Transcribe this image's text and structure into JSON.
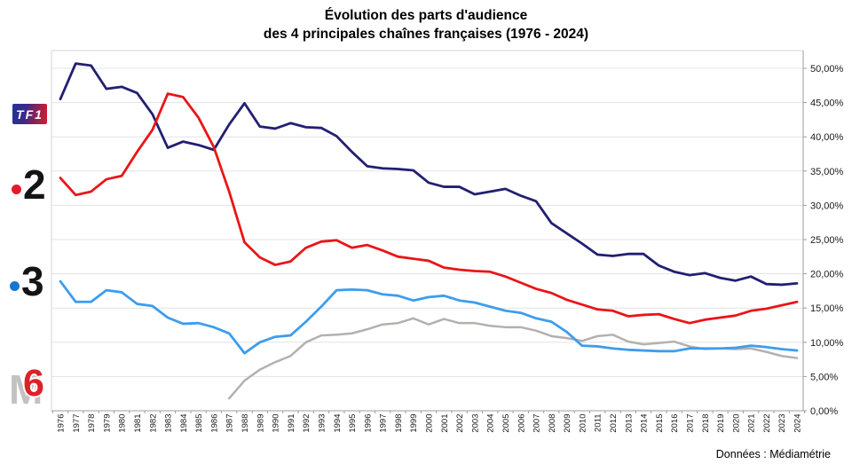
{
  "title": {
    "line1": "Évolution des parts d'audience",
    "line2": "des 4 principales chaînes françaises (1976 - 2024)"
  },
  "source": "Données : Médiamétrie",
  "logos": {
    "tf1": "TF1",
    "f2": "2",
    "f3": "3",
    "m6_m": "M",
    "m6_6": "6"
  },
  "chart_data": {
    "type": "line",
    "x": [
      1976,
      1977,
      1978,
      1979,
      1980,
      1981,
      1982,
      1983,
      1984,
      1985,
      1986,
      1987,
      1988,
      1989,
      1990,
      1991,
      1992,
      1993,
      1994,
      1995,
      1996,
      1997,
      1998,
      1999,
      2000,
      2001,
      2002,
      2003,
      2004,
      2005,
      2006,
      2007,
      2008,
      2009,
      2010,
      2011,
      2012,
      2013,
      2014,
      2015,
      2016,
      2017,
      2018,
      2019,
      2020,
      2021,
      2022,
      2023,
      2024
    ],
    "series": [
      {
        "id": "tf1",
        "name": "TF1",
        "color": "#221f72",
        "values": [
          45.5,
          50.7,
          50.4,
          47.0,
          47.3,
          46.4,
          43.3,
          38.4,
          39.3,
          38.8,
          38.1,
          41.8,
          44.9,
          41.5,
          41.2,
          42.0,
          41.4,
          41.3,
          40.1,
          37.8,
          35.7,
          35.4,
          35.3,
          35.1,
          33.3,
          32.7,
          32.7,
          31.6,
          32.0,
          32.4,
          31.4,
          30.6,
          27.4,
          25.9,
          24.4,
          22.8,
          22.6,
          22.9,
          22.9,
          21.2,
          20.3,
          19.8,
          20.1,
          19.4,
          19.0,
          19.6,
          18.5,
          18.4,
          18.6
        ]
      },
      {
        "id": "france2",
        "name": "Antenne 2 / France 2",
        "color": "#ea1517",
        "values": [
          34.0,
          31.5,
          32.0,
          33.8,
          34.3,
          37.8,
          41.0,
          46.3,
          45.8,
          42.8,
          38.5,
          32.0,
          24.6,
          22.4,
          21.3,
          21.8,
          23.8,
          24.7,
          24.9,
          23.8,
          24.2,
          23.4,
          22.5,
          22.2,
          21.9,
          20.9,
          20.6,
          20.4,
          20.3,
          19.6,
          18.7,
          17.8,
          17.2,
          16.2,
          15.5,
          14.8,
          14.6,
          13.8,
          14.0,
          14.1,
          13.4,
          12.8,
          13.3,
          13.6,
          13.9,
          14.6,
          14.9,
          15.4,
          15.9
        ]
      },
      {
        "id": "france3",
        "name": "FR3 / France 3",
        "color": "#3d9ded",
        "values": [
          18.9,
          15.9,
          15.9,
          17.6,
          17.3,
          15.6,
          15.3,
          13.6,
          12.7,
          12.8,
          12.2,
          11.3,
          8.4,
          10.0,
          10.8,
          11.0,
          13.0,
          15.2,
          17.6,
          17.7,
          17.6,
          17.0,
          16.8,
          16.1,
          16.6,
          16.8,
          16.1,
          15.8,
          15.2,
          14.6,
          14.3,
          13.5,
          13.0,
          11.5,
          9.5,
          9.4,
          9.1,
          8.9,
          8.8,
          8.7,
          8.7,
          9.1,
          9.1,
          9.1,
          9.2,
          9.5,
          9.3,
          9.0,
          8.8
        ]
      },
      {
        "id": "m6",
        "name": "M6",
        "color": "#b3b1af",
        "values": [
          null,
          null,
          null,
          null,
          null,
          null,
          null,
          null,
          null,
          null,
          null,
          1.8,
          4.4,
          6.0,
          7.1,
          8.0,
          10.0,
          11.0,
          11.1,
          11.3,
          11.9,
          12.6,
          12.8,
          13.5,
          12.6,
          13.4,
          12.8,
          12.8,
          12.4,
          12.2,
          12.2,
          11.7,
          10.9,
          10.6,
          10.2,
          10.9,
          11.1,
          10.1,
          9.7,
          9.9,
          10.1,
          9.4,
          9.0,
          9.1,
          9.0,
          9.1,
          8.6,
          8.0,
          7.7
        ]
      }
    ],
    "ylim": [
      0,
      52.6
    ],
    "yticks": [
      {
        "value": 0,
        "label": "0,00%"
      },
      {
        "value": 5,
        "label": "5,00%"
      },
      {
        "value": 10,
        "label": "10,00%"
      },
      {
        "value": 15,
        "label": "15,00%"
      },
      {
        "value": 20,
        "label": "20,00%"
      },
      {
        "value": 25,
        "label": "25,00%"
      },
      {
        "value": 30,
        "label": "30,00%"
      },
      {
        "value": 35,
        "label": "35,00%"
      },
      {
        "value": 40,
        "label": "40,00%"
      },
      {
        "value": 45,
        "label": "45,00%"
      },
      {
        "value": 50,
        "label": "50,00%"
      }
    ],
    "grid": true,
    "legend": "channel logos on left margin",
    "xlabel": "",
    "ylabel": ""
  }
}
